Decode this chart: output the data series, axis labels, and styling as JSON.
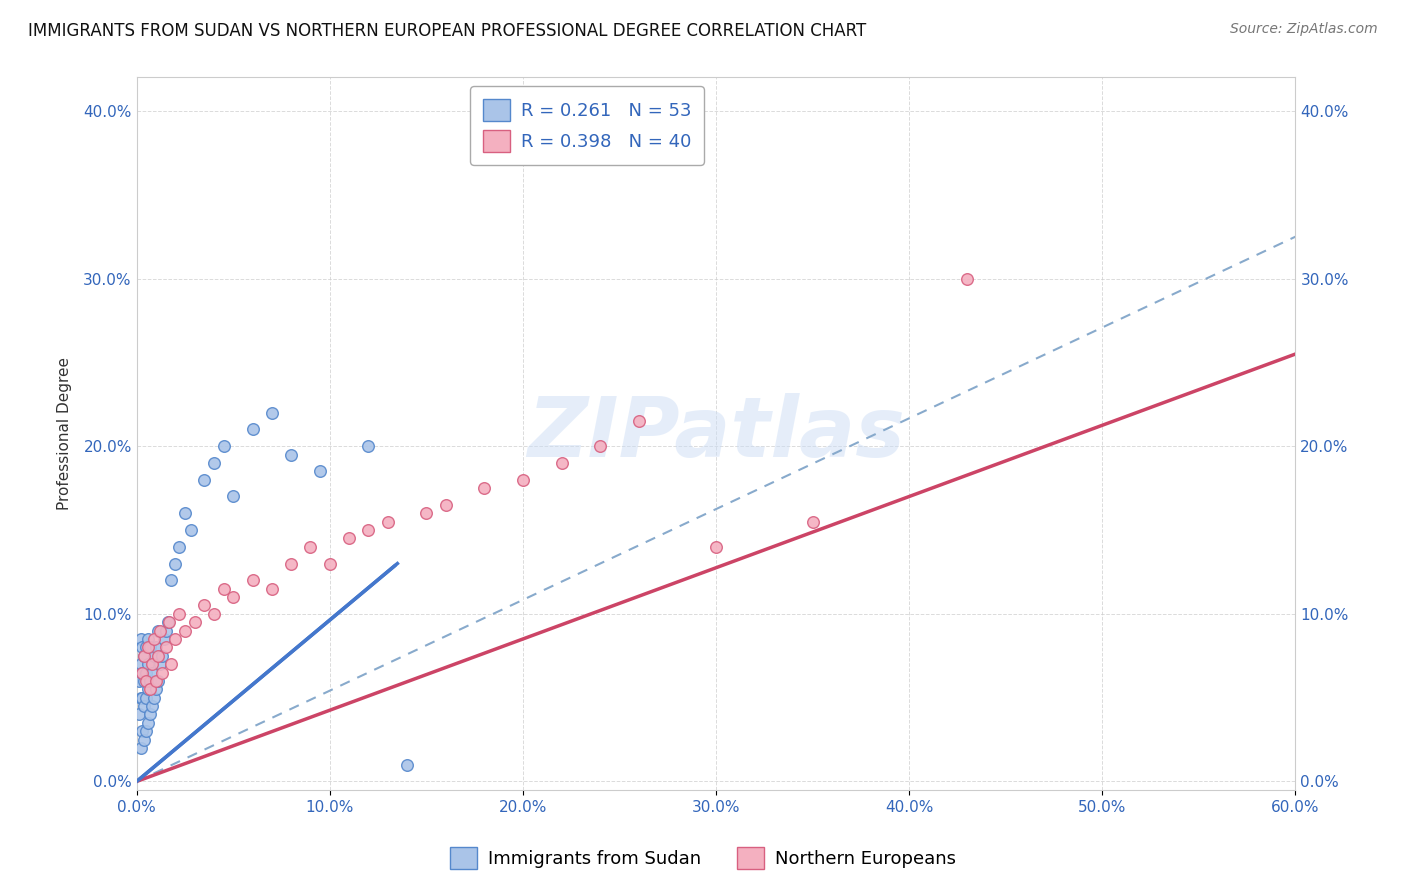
{
  "title": "IMMIGRANTS FROM SUDAN VS NORTHERN EUROPEAN PROFESSIONAL DEGREE CORRELATION CHART",
  "source": "Source: ZipAtlas.com",
  "ylabel": "Professional Degree",
  "xlim": [
    0.0,
    0.6
  ],
  "ylim": [
    -0.005,
    0.42
  ],
  "x_ticks": [
    0.0,
    0.1,
    0.2,
    0.3,
    0.4,
    0.5,
    0.6
  ],
  "x_tick_labels": [
    "0.0%",
    "10.0%",
    "20.0%",
    "30.0%",
    "40.0%",
    "50.0%",
    "60.0%"
  ],
  "y_ticks": [
    0.0,
    0.1,
    0.2,
    0.3,
    0.4
  ],
  "y_tick_labels": [
    "0.0%",
    "10.0%",
    "20.0%",
    "30.0%",
    "40.0%"
  ],
  "sudan_color": "#aac4e8",
  "sudan_edge_color": "#5588cc",
  "northern_color": "#f4b0c0",
  "northern_edge_color": "#d86080",
  "trend_sudan_color": "#4477cc",
  "trend_northern_color": "#cc4466",
  "trend_dashed_color": "#88aacc",
  "legend_R_sudan": "R = 0.261",
  "legend_N_sudan": "N = 53",
  "legend_R_northern": "R = 0.398",
  "legend_N_northern": "N = 40",
  "legend_label_sudan": "Immigrants from Sudan",
  "legend_label_northern": "Northern Europeans",
  "watermark_text": "ZIPatlas",
  "title_fontsize": 12,
  "source_fontsize": 10,
  "axis_label_fontsize": 11,
  "tick_fontsize": 11,
  "legend_fontsize": 13,
  "marker_size": 70,
  "sudan_x": [
    0.001,
    0.001,
    0.002,
    0.002,
    0.002,
    0.002,
    0.003,
    0.003,
    0.003,
    0.003,
    0.004,
    0.004,
    0.004,
    0.004,
    0.005,
    0.005,
    0.005,
    0.005,
    0.006,
    0.006,
    0.006,
    0.006,
    0.007,
    0.007,
    0.007,
    0.008,
    0.008,
    0.009,
    0.009,
    0.01,
    0.01,
    0.011,
    0.011,
    0.012,
    0.013,
    0.014,
    0.015,
    0.016,
    0.018,
    0.02,
    0.022,
    0.025,
    0.028,
    0.035,
    0.04,
    0.045,
    0.05,
    0.06,
    0.07,
    0.08,
    0.095,
    0.12,
    0.14
  ],
  "sudan_y": [
    0.04,
    0.06,
    0.02,
    0.05,
    0.07,
    0.085,
    0.03,
    0.05,
    0.065,
    0.08,
    0.025,
    0.045,
    0.06,
    0.075,
    0.03,
    0.05,
    0.065,
    0.08,
    0.035,
    0.055,
    0.07,
    0.085,
    0.04,
    0.06,
    0.08,
    0.045,
    0.065,
    0.05,
    0.075,
    0.055,
    0.08,
    0.06,
    0.09,
    0.07,
    0.075,
    0.085,
    0.09,
    0.095,
    0.12,
    0.13,
    0.14,
    0.16,
    0.15,
    0.18,
    0.19,
    0.2,
    0.17,
    0.21,
    0.22,
    0.195,
    0.185,
    0.2,
    0.01
  ],
  "northern_x": [
    0.003,
    0.004,
    0.005,
    0.006,
    0.007,
    0.008,
    0.009,
    0.01,
    0.011,
    0.012,
    0.013,
    0.015,
    0.017,
    0.018,
    0.02,
    0.022,
    0.025,
    0.03,
    0.035,
    0.04,
    0.045,
    0.05,
    0.06,
    0.07,
    0.08,
    0.09,
    0.1,
    0.11,
    0.12,
    0.13,
    0.15,
    0.16,
    0.18,
    0.2,
    0.22,
    0.24,
    0.26,
    0.3,
    0.35,
    0.43
  ],
  "northern_y": [
    0.065,
    0.075,
    0.06,
    0.08,
    0.055,
    0.07,
    0.085,
    0.06,
    0.075,
    0.09,
    0.065,
    0.08,
    0.095,
    0.07,
    0.085,
    0.1,
    0.09,
    0.095,
    0.105,
    0.1,
    0.115,
    0.11,
    0.12,
    0.115,
    0.13,
    0.14,
    0.13,
    0.145,
    0.15,
    0.155,
    0.16,
    0.165,
    0.175,
    0.18,
    0.19,
    0.2,
    0.215,
    0.14,
    0.155,
    0.3
  ],
  "sudan_trend_x0": 0.0,
  "sudan_trend_y0": 0.0,
  "sudan_trend_x1": 0.135,
  "sudan_trend_y1": 0.13,
  "northern_trend_x0": 0.0,
  "northern_trend_y0": 0.0,
  "northern_trend_x1": 0.6,
  "northern_trend_y1": 0.255,
  "dashed_trend_x0": 0.0,
  "dashed_trend_y0": 0.0,
  "dashed_trend_x1": 0.6,
  "dashed_trend_y1": 0.325
}
